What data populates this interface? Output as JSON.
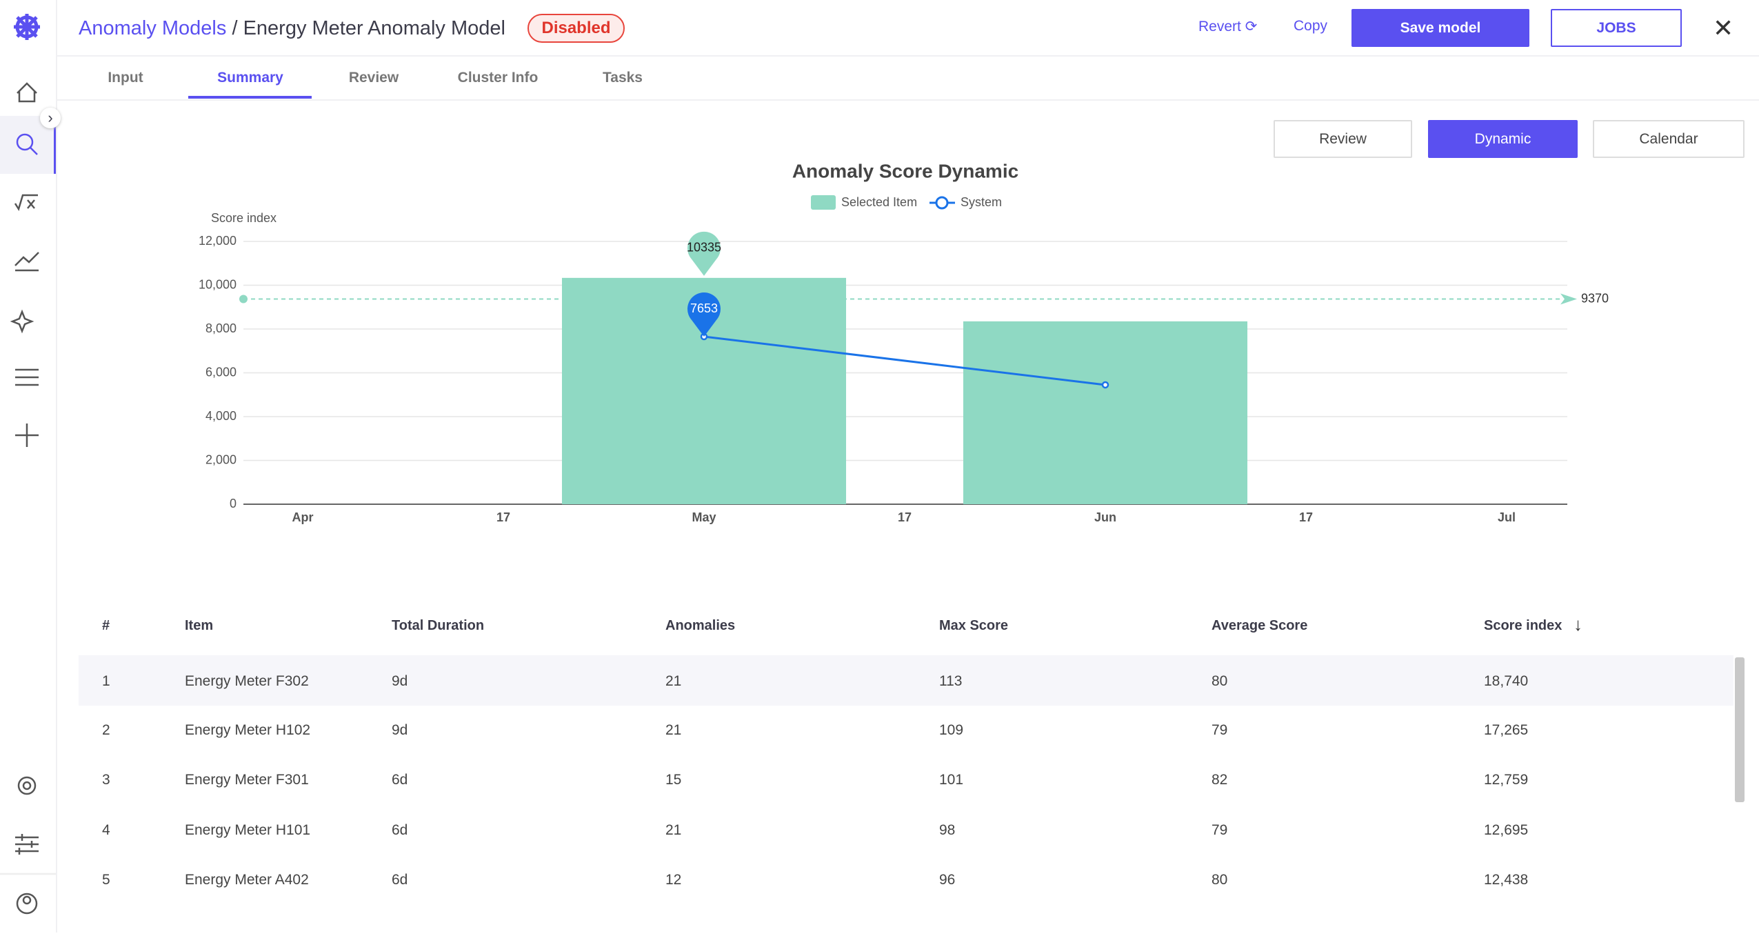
{
  "header": {
    "breadcrumb": "Anomaly Models",
    "separator": "/",
    "title": "Energy Meter Anomaly Model",
    "status": "Disabled",
    "revert": "Revert",
    "copy": "Copy",
    "save": "Save model",
    "jobs": "JOBS"
  },
  "tabs": [
    "Input",
    "Summary",
    "Review",
    "Cluster Info",
    "Tasks"
  ],
  "view_buttons": [
    "Review",
    "Dynamic",
    "Calendar"
  ],
  "chart_data": {
    "type": "bar",
    "title": "Anomaly Score Dynamic",
    "y_label": "Score index",
    "x": [
      "May",
      "Jun"
    ],
    "xticks": [
      "Apr",
      "17",
      "May",
      "17",
      "Jun",
      "17",
      "Jul"
    ],
    "series": [
      {
        "name": "Selected Item",
        "type": "bar",
        "color": "#8fd9c3",
        "values": [
          10335,
          8350
        ]
      },
      {
        "name": "System",
        "type": "line",
        "color": "#1a73e8",
        "values": [
          7653,
          5450
        ]
      }
    ],
    "average": 9370,
    "ylim": [
      0,
      12000
    ],
    "yticks": [
      0,
      {
        "value": 2000,
        "label": "2,000"
      },
      {
        "value": 4000,
        "label": "4,000"
      },
      {
        "value": 6000,
        "label": "6,000"
      },
      {
        "value": 8000,
        "label": "8,000"
      },
      {
        "value": 10000,
        "label": "10,000"
      },
      {
        "value": 12000,
        "label": "12,000"
      }
    ],
    "grid": true
  },
  "table": {
    "headers": [
      "#",
      "Item",
      "Total Duration",
      "Anomalies",
      "Max Score",
      "Average Score",
      "Score index"
    ],
    "rows": [
      [
        "1",
        "Energy Meter F302",
        "9d",
        "21",
        "113",
        "80",
        "18,740"
      ],
      [
        "2",
        "Energy Meter H102",
        "9d",
        "21",
        "109",
        "79",
        "17,265"
      ],
      [
        "3",
        "Energy Meter F301",
        "6d",
        "15",
        "101",
        "82",
        "12,759"
      ],
      [
        "4",
        "Energy Meter H101",
        "6d",
        "21",
        "98",
        "79",
        "12,695"
      ],
      [
        "5",
        "Energy Meter A402",
        "6d",
        "12",
        "96",
        "80",
        "12,438"
      ]
    ]
  }
}
